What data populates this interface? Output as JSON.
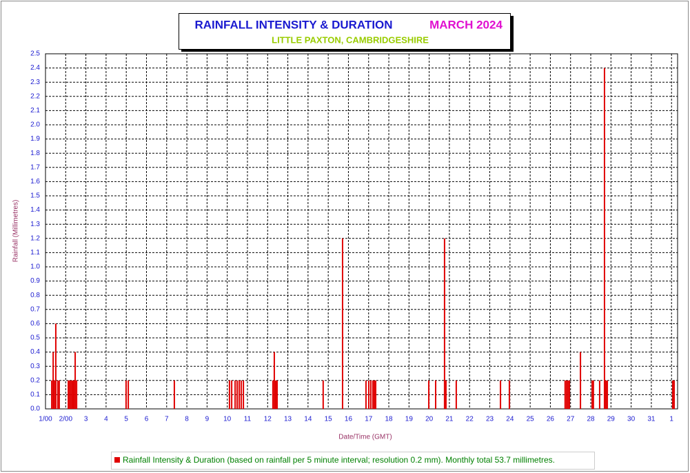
{
  "chart_data": {
    "type": "bar",
    "title": "RAINFALL INTENSITY & DURATION",
    "title_date": "MARCH 2024",
    "subtitle": "LITTLE PAXTON, CAMBRIDGESHIRE",
    "x_label": "Date/Time (GMT)",
    "y_label": "Rainfall (Millimetres)",
    "grid": true,
    "xlim": [
      1,
      32.3
    ],
    "ylim": [
      0,
      2.5
    ],
    "xticks": [
      {
        "value": 1,
        "label": "1/00"
      },
      {
        "value": 2,
        "label": "2/00"
      },
      3,
      4,
      5,
      6,
      7,
      8,
      9,
      10,
      11,
      12,
      13,
      14,
      15,
      16,
      17,
      18,
      19,
      20,
      21,
      22,
      23,
      24,
      25,
      26,
      27,
      28,
      29,
      30,
      31,
      {
        "value": 32,
        "label": "1"
      }
    ],
    "yticks": [
      {
        "value": 0,
        "label": "0.0"
      },
      0.1,
      0.2,
      0.3,
      0.4,
      0.5,
      0.6,
      0.7,
      0.8,
      0.9,
      {
        "value": 1,
        "label": "1.0"
      },
      1.1,
      1.2,
      1.3,
      1.4,
      1.5,
      1.6,
      1.7,
      1.8,
      1.9,
      {
        "value": 2,
        "label": "2.0"
      },
      2.1,
      2.2,
      2.3,
      2.4,
      2.5
    ],
    "series": [
      {
        "name": "Rainfall Intensity & Duration (based on rainfall per 5 minute interval; resolution 0.2 mm). Monthly total 53.7 millimetres.",
        "color": "#e00000",
        "x": [
          1.31,
          1.38,
          1.44,
          1.51,
          1.61,
          1.68,
          2.13,
          2.19,
          2.26,
          2.33,
          2.4,
          2.47,
          2.54,
          4.99,
          5.1,
          7.38,
          10.11,
          10.22,
          10.39,
          10.49,
          10.59,
          10.69,
          10.8,
          12.26,
          12.33,
          12.4,
          12.47,
          14.75,
          15.71,
          16.87,
          17.01,
          17.11,
          17.21,
          17.28,
          17.35,
          19.98,
          20.32,
          20.76,
          20.83,
          21.34,
          23.53,
          23.97,
          26.73,
          26.8,
          26.87,
          26.94,
          27.49,
          28.07,
          28.13,
          28.44,
          28.68,
          28.75,
          28.82,
          32.06,
          32.13
        ],
        "values": [
          0.2,
          0.4,
          0.2,
          0.6,
          0.2,
          0.2,
          0.2,
          0.2,
          0.2,
          0.2,
          0.2,
          0.4,
          0.2,
          0.2,
          0.2,
          0.2,
          0.2,
          0.2,
          0.2,
          0.2,
          0.2,
          0.2,
          0.2,
          0.2,
          0.4,
          0.2,
          0.2,
          0.2,
          1.2,
          0.2,
          0.2,
          0.2,
          0.2,
          0.2,
          0.2,
          0.2,
          0.2,
          1.2,
          0.2,
          0.2,
          0.2,
          0.2,
          0.2,
          0.2,
          0.2,
          0.2,
          0.4,
          0.2,
          0.2,
          0.2,
          2.4,
          0.2,
          0.2,
          0.2,
          0.2
        ]
      }
    ]
  }
}
